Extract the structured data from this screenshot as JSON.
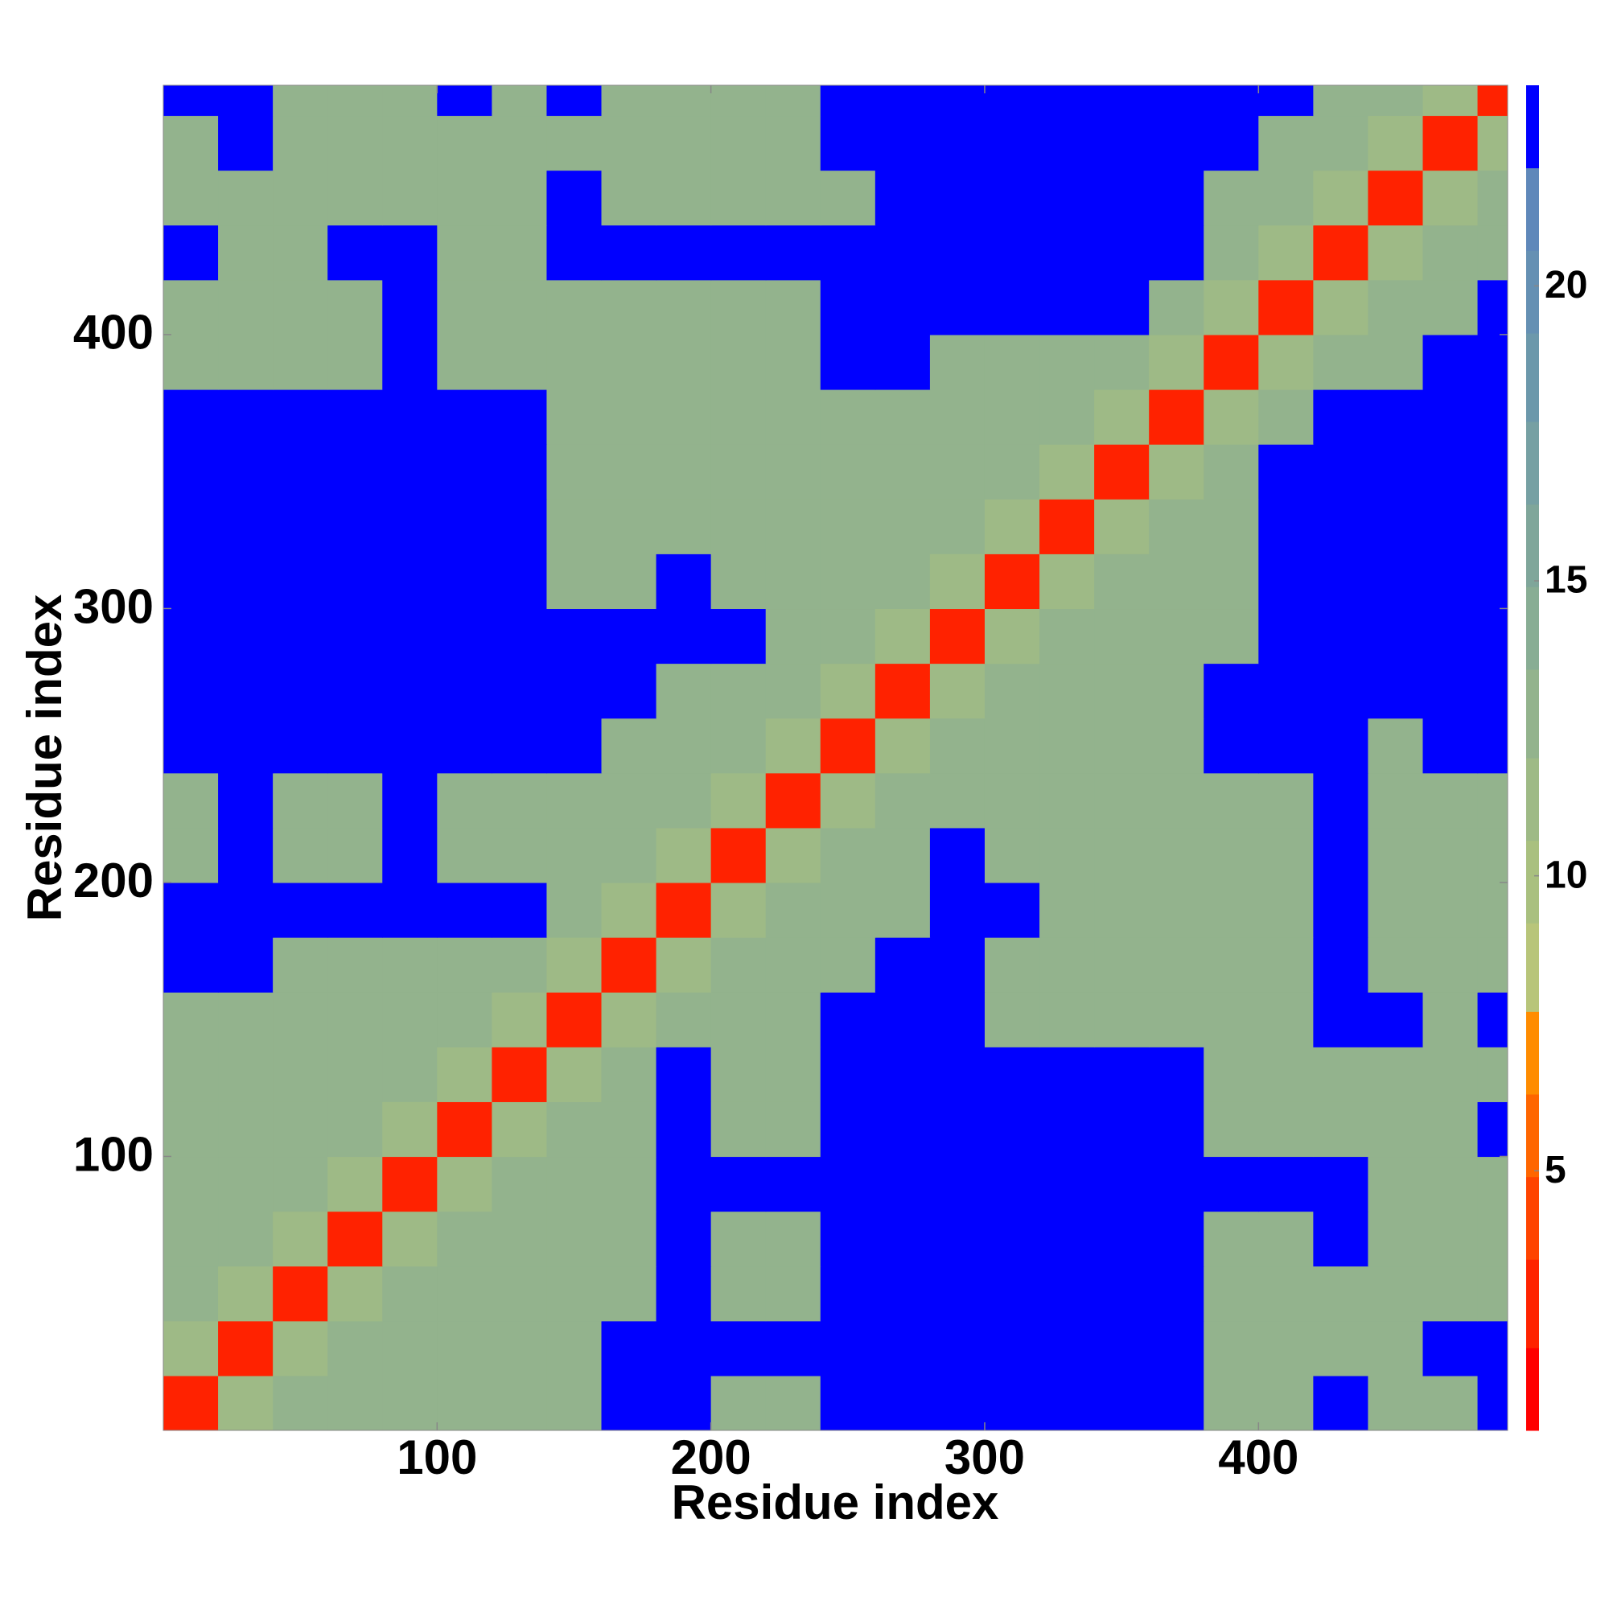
{
  "chart_data": {
    "type": "heatmap",
    "xlabel": "Residue index",
    "ylabel": "Residue index",
    "xlim": [
      0,
      491
    ],
    "ylim": [
      0,
      491
    ],
    "xticks": [
      100,
      200,
      300,
      400
    ],
    "yticks": [
      100,
      200,
      300,
      400
    ],
    "xbins": [
      0,
      20,
      40,
      60,
      80,
      100,
      120,
      140,
      160,
      180,
      200,
      220,
      240,
      260,
      280,
      300,
      320,
      340,
      360,
      380,
      400,
      420,
      440,
      460,
      480,
      500
    ],
    "ybins": [
      0,
      20,
      40,
      60,
      80,
      100,
      120,
      140,
      160,
      180,
      200,
      220,
      240,
      260,
      280,
      300,
      320,
      340,
      360,
      380,
      400,
      420,
      440,
      460,
      480,
      500
    ],
    "z": [
      [
        3,
        11,
        13,
        13,
        13,
        13,
        13,
        13,
        23,
        23,
        13,
        13,
        23,
        23,
        23,
        23,
        23,
        23,
        23,
        13,
        13,
        23,
        13,
        13,
        23
      ],
      [
        11,
        3,
        11,
        13,
        13,
        13,
        13,
        13,
        23,
        23,
        23,
        23,
        23,
        23,
        23,
        23,
        23,
        23,
        23,
        13,
        13,
        13,
        13,
        23,
        23
      ],
      [
        13,
        11,
        3,
        11,
        13,
        13,
        13,
        13,
        13,
        23,
        13,
        13,
        23,
        23,
        23,
        23,
        23,
        23,
        23,
        13,
        13,
        13,
        13,
        13,
        13
      ],
      [
        13,
        13,
        11,
        3,
        11,
        13,
        13,
        13,
        13,
        23,
        13,
        13,
        23,
        23,
        23,
        23,
        23,
        23,
        23,
        13,
        13,
        23,
        13,
        13,
        13
      ],
      [
        13,
        13,
        13,
        11,
        3,
        11,
        13,
        13,
        13,
        23,
        23,
        23,
        23,
        23,
        23,
        23,
        23,
        23,
        23,
        23,
        23,
        23,
        13,
        13,
        13
      ],
      [
        13,
        13,
        13,
        13,
        11,
        3,
        11,
        13,
        13,
        23,
        13,
        13,
        23,
        23,
        23,
        23,
        23,
        23,
        23,
        13,
        13,
        13,
        13,
        13,
        23
      ],
      [
        13,
        13,
        13,
        13,
        13,
        11,
        3,
        11,
        13,
        23,
        13,
        13,
        23,
        23,
        23,
        23,
        23,
        23,
        23,
        13,
        13,
        13,
        13,
        13,
        13
      ],
      [
        13,
        13,
        13,
        13,
        13,
        13,
        11,
        3,
        11,
        13,
        13,
        13,
        23,
        23,
        23,
        13,
        13,
        13,
        13,
        13,
        13,
        23,
        23,
        13,
        23
      ],
      [
        23,
        23,
        13,
        13,
        13,
        13,
        13,
        11,
        3,
        11,
        13,
        13,
        13,
        23,
        23,
        13,
        13,
        13,
        13,
        13,
        13,
        23,
        13,
        13,
        13
      ],
      [
        23,
        23,
        23,
        23,
        23,
        23,
        23,
        13,
        11,
        3,
        11,
        13,
        13,
        13,
        23,
        23,
        13,
        13,
        13,
        13,
        13,
        23,
        13,
        13,
        13
      ],
      [
        13,
        23,
        13,
        13,
        23,
        13,
        13,
        13,
        13,
        11,
        3,
        11,
        13,
        13,
        23,
        13,
        13,
        13,
        13,
        13,
        13,
        23,
        13,
        13,
        13
      ],
      [
        13,
        23,
        13,
        13,
        23,
        13,
        13,
        13,
        13,
        13,
        11,
        3,
        11,
        13,
        13,
        13,
        13,
        13,
        13,
        13,
        13,
        23,
        13,
        13,
        13
      ],
      [
        23,
        23,
        23,
        23,
        23,
        23,
        23,
        23,
        13,
        13,
        13,
        11,
        3,
        11,
        13,
        13,
        13,
        13,
        13,
        23,
        23,
        23,
        13,
        23,
        23
      ],
      [
        23,
        23,
        23,
        23,
        23,
        23,
        23,
        23,
        23,
        13,
        13,
        13,
        11,
        3,
        11,
        13,
        13,
        13,
        13,
        23,
        23,
        23,
        23,
        23,
        23
      ],
      [
        23,
        23,
        23,
        23,
        23,
        23,
        23,
        23,
        23,
        23,
        23,
        13,
        13,
        11,
        3,
        11,
        13,
        13,
        13,
        13,
        23,
        23,
        23,
        23,
        23
      ],
      [
        23,
        23,
        23,
        23,
        23,
        23,
        23,
        13,
        13,
        23,
        13,
        13,
        13,
        13,
        11,
        3,
        11,
        13,
        13,
        13,
        23,
        23,
        23,
        23,
        23
      ],
      [
        23,
        23,
        23,
        23,
        23,
        23,
        23,
        13,
        13,
        13,
        13,
        13,
        13,
        13,
        13,
        11,
        3,
        11,
        13,
        13,
        23,
        23,
        23,
        23,
        23
      ],
      [
        23,
        23,
        23,
        23,
        23,
        23,
        23,
        13,
        13,
        13,
        13,
        13,
        13,
        13,
        13,
        13,
        11,
        3,
        11,
        13,
        23,
        23,
        23,
        23,
        23
      ],
      [
        23,
        23,
        23,
        23,
        23,
        23,
        23,
        13,
        13,
        13,
        13,
        13,
        13,
        13,
        13,
        13,
        13,
        11,
        3,
        11,
        13,
        23,
        23,
        23,
        23
      ],
      [
        13,
        13,
        13,
        13,
        23,
        13,
        13,
        13,
        13,
        13,
        13,
        13,
        23,
        23,
        13,
        13,
        13,
        13,
        11,
        3,
        11,
        13,
        13,
        23,
        23
      ],
      [
        13,
        13,
        13,
        13,
        23,
        13,
        13,
        13,
        13,
        13,
        13,
        13,
        23,
        23,
        23,
        23,
        23,
        23,
        13,
        11,
        3,
        11,
        13,
        13,
        23
      ],
      [
        23,
        13,
        13,
        23,
        23,
        13,
        13,
        23,
        23,
        23,
        23,
        23,
        23,
        23,
        23,
        23,
        23,
        23,
        23,
        13,
        11,
        3,
        11,
        13,
        13
      ],
      [
        13,
        13,
        13,
        13,
        13,
        13,
        13,
        23,
        13,
        13,
        13,
        13,
        13,
        23,
        23,
        23,
        23,
        23,
        23,
        13,
        13,
        11,
        3,
        11,
        13
      ],
      [
        13,
        23,
        13,
        13,
        13,
        13,
        13,
        13,
        13,
        13,
        13,
        13,
        23,
        23,
        23,
        23,
        23,
        23,
        23,
        23,
        13,
        13,
        11,
        3,
        11
      ],
      [
        23,
        23,
        13,
        13,
        13,
        23,
        13,
        23,
        13,
        13,
        13,
        13,
        23,
        23,
        23,
        23,
        23,
        23,
        23,
        23,
        23,
        13,
        13,
        11,
        3
      ]
    ],
    "colorbar": {
      "levels": [
        0.6,
        2.0,
        3.5,
        4.9,
        6.3,
        7.7,
        9.2,
        10.6,
        12.0,
        13.5,
        14.9,
        16.3,
        17.7,
        19.2,
        20.6,
        22.0,
        23.4
      ],
      "colors": [
        "#ff0000",
        "#ff2200",
        "#ff4400",
        "#ff6600",
        "#ff8c00",
        "#b8c57a",
        "#a9c07f",
        "#9eba86",
        "#93b38d",
        "#88ad94",
        "#7fa69a",
        "#76a0a3",
        "#6c98ab",
        "#6590b3",
        "#5f88ba",
        "#0000ff"
      ],
      "ticks": [
        5,
        10,
        15,
        20
      ]
    }
  }
}
